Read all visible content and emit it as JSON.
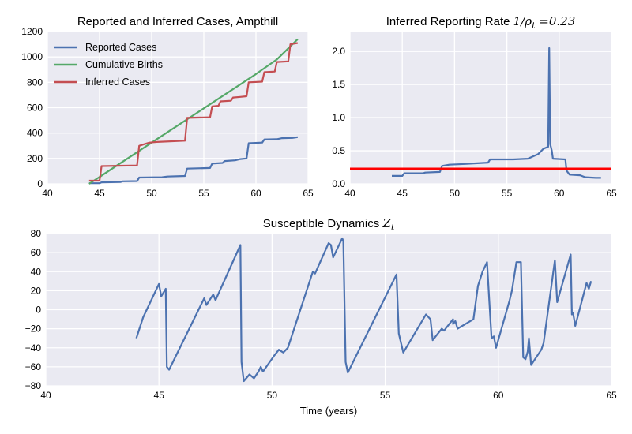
{
  "figure": {
    "xlabel": "Time (years)"
  },
  "colors": {
    "panel_bg": "#eaeaf2",
    "grid": "#ffffff",
    "blue": "#4c72b0",
    "green": "#55a868",
    "red": "#c44e52",
    "ref_line": "#ff0000"
  },
  "chart_data": [
    {
      "id": "cases",
      "type": "line",
      "title": "Reported and Inferred Cases, Ampthill",
      "xlim": [
        40,
        65
      ],
      "ylim": [
        0,
        1200
      ],
      "xticks": [
        40,
        45,
        50,
        55,
        60,
        65
      ],
      "yticks": [
        0,
        200,
        400,
        600,
        800,
        1000,
        1200
      ],
      "legend_position": "top-left",
      "series": [
        {
          "name": "Reported Cases",
          "color": "#4c72b0",
          "points": [
            [
              44,
              5
            ],
            [
              45,
              5
            ],
            [
              45.2,
              12
            ],
            [
              47,
              14
            ],
            [
              47.2,
              20
            ],
            [
              48.6,
              22
            ],
            [
              48.8,
              50
            ],
            [
              51,
              52
            ],
            [
              51.5,
              58
            ],
            [
              53.2,
              62
            ],
            [
              53.4,
              120
            ],
            [
              55.6,
              125
            ],
            [
              55.8,
              160
            ],
            [
              56.8,
              165
            ],
            [
              57,
              180
            ],
            [
              58,
              185
            ],
            [
              58.5,
              195
            ],
            [
              59.1,
              200
            ],
            [
              59.3,
              320
            ],
            [
              60.6,
              325
            ],
            [
              60.8,
              350
            ],
            [
              62,
              352
            ],
            [
              62.5,
              360
            ],
            [
              63.5,
              362
            ],
            [
              64,
              368
            ]
          ]
        },
        {
          "name": "Cumulative Births",
          "color": "#55a868",
          "points": [
            [
              44,
              0
            ],
            [
              50,
              325
            ],
            [
              55,
              595
            ],
            [
              60,
              865
            ],
            [
              62,
              980
            ],
            [
              64,
              1140
            ]
          ]
        },
        {
          "name": "Inferred Cases",
          "color": "#c44e52",
          "points": [
            [
              44,
              25
            ],
            [
              45,
              25
            ],
            [
              45.2,
              140
            ],
            [
              48.6,
              145
            ],
            [
              48.8,
              300
            ],
            [
              49.2,
              310
            ],
            [
              49.8,
              325
            ],
            [
              50.5,
              330
            ],
            [
              53.2,
              340
            ],
            [
              53.4,
              520
            ],
            [
              55.6,
              525
            ],
            [
              55.8,
              610
            ],
            [
              56.4,
              615
            ],
            [
              56.6,
              650
            ],
            [
              57.6,
              655
            ],
            [
              57.8,
              680
            ],
            [
              58.5,
              685
            ],
            [
              59.1,
              690
            ],
            [
              59.3,
              800
            ],
            [
              60.6,
              805
            ],
            [
              60.8,
              880
            ],
            [
              61.8,
              885
            ],
            [
              62,
              960
            ],
            [
              63.1,
              965
            ],
            [
              63.3,
              1100
            ],
            [
              64,
              1110
            ]
          ]
        }
      ]
    },
    {
      "id": "rate",
      "type": "line",
      "title_text": "Inferred Reporting Rate ",
      "title_math": "1/ρ",
      "title_sub": "t",
      "title_value": " =0.23",
      "xlim": [
        40,
        65
      ],
      "ylim": [
        0,
        2.3
      ],
      "xticks": [
        40,
        45,
        50,
        55,
        60,
        65
      ],
      "yticks": [
        0.0,
        0.5,
        1.0,
        1.5,
        2.0
      ],
      "reference_y": 0.23,
      "series": [
        {
          "color": "#4c72b0",
          "points": [
            [
              44,
              0.12
            ],
            [
              45,
              0.12
            ],
            [
              45.2,
              0.16
            ],
            [
              47,
              0.16
            ],
            [
              47.2,
              0.17
            ],
            [
              48.6,
              0.18
            ],
            [
              48.8,
              0.27
            ],
            [
              49.5,
              0.29
            ],
            [
              51,
              0.3
            ],
            [
              52,
              0.31
            ],
            [
              53.2,
              0.32
            ],
            [
              53.4,
              0.37
            ],
            [
              55.6,
              0.37
            ],
            [
              57,
              0.38
            ],
            [
              58,
              0.45
            ],
            [
              58.5,
              0.53
            ],
            [
              58.95,
              0.56
            ],
            [
              59.05,
              2.05
            ],
            [
              59.15,
              0.6
            ],
            [
              59.3,
              0.5
            ],
            [
              59.4,
              0.38
            ],
            [
              60.6,
              0.37
            ],
            [
              60.7,
              0.2
            ],
            [
              61,
              0.14
            ],
            [
              62,
              0.13
            ],
            [
              62.5,
              0.1
            ],
            [
              63.5,
              0.09
            ],
            [
              64,
              0.09
            ]
          ]
        }
      ]
    },
    {
      "id": "susceptible",
      "type": "line",
      "title_text": "Susceptible Dynamics ",
      "title_math": "Z",
      "title_sub": "t",
      "xlim": [
        40,
        65
      ],
      "ylim": [
        -80,
        80
      ],
      "xticks": [
        40,
        45,
        50,
        55,
        60,
        65
      ],
      "yticks": [
        -80,
        -60,
        -40,
        -20,
        0,
        20,
        40,
        60,
        80
      ],
      "series": [
        {
          "color": "#4c72b0",
          "points": [
            [
              44,
              -30
            ],
            [
              44.3,
              -8
            ],
            [
              45,
              27
            ],
            [
              45.1,
              14
            ],
            [
              45.3,
              22
            ],
            [
              45.35,
              -60
            ],
            [
              45.45,
              -63
            ],
            [
              47,
              12
            ],
            [
              47.1,
              5
            ],
            [
              47.4,
              16
            ],
            [
              47.5,
              10
            ],
            [
              48.6,
              68
            ],
            [
              48.65,
              -55
            ],
            [
              48.75,
              -75
            ],
            [
              49,
              -68
            ],
            [
              49.2,
              -72
            ],
            [
              49.4,
              -65
            ],
            [
              49.5,
              -60
            ],
            [
              49.6,
              -65
            ],
            [
              50.1,
              -48
            ],
            [
              50.3,
              -42
            ],
            [
              50.5,
              -45
            ],
            [
              50.7,
              -40
            ],
            [
              51.8,
              40
            ],
            [
              51.9,
              38
            ],
            [
              52.5,
              70
            ],
            [
              52.6,
              68
            ],
            [
              52.7,
              55
            ],
            [
              53.1,
              75
            ],
            [
              53.15,
              72
            ],
            [
              53.25,
              -55
            ],
            [
              53.35,
              -66
            ],
            [
              55.5,
              37
            ],
            [
              55.6,
              -25
            ],
            [
              55.8,
              -45
            ],
            [
              56.8,
              -5
            ],
            [
              57,
              -10
            ],
            [
              57.1,
              -32
            ],
            [
              57.5,
              -20
            ],
            [
              57.6,
              -22
            ],
            [
              58,
              -10
            ],
            [
              58,
              -15
            ],
            [
              58.1,
              -12
            ],
            [
              58.2,
              -20
            ],
            [
              58.9,
              -10
            ],
            [
              59.1,
              25
            ],
            [
              59.3,
              40
            ],
            [
              59.5,
              50
            ],
            [
              59.6,
              10
            ],
            [
              59.7,
              -30
            ],
            [
              59.8,
              -28
            ],
            [
              59.9,
              -40
            ],
            [
              60.5,
              10
            ],
            [
              60.6,
              20
            ],
            [
              60.8,
              50
            ],
            [
              61,
              50
            ],
            [
              61.1,
              -50
            ],
            [
              61.2,
              -52
            ],
            [
              61.3,
              -44
            ],
            [
              61.35,
              -30
            ],
            [
              61.45,
              -58
            ],
            [
              61.9,
              -42
            ],
            [
              62,
              -35
            ],
            [
              62.5,
              52
            ],
            [
              62.6,
              8
            ],
            [
              63.2,
              58
            ],
            [
              63.25,
              -5
            ],
            [
              63.3,
              -3
            ],
            [
              63.4,
              -17
            ],
            [
              63.9,
              28
            ],
            [
              64,
              22
            ],
            [
              64.1,
              30
            ]
          ]
        }
      ]
    }
  ]
}
